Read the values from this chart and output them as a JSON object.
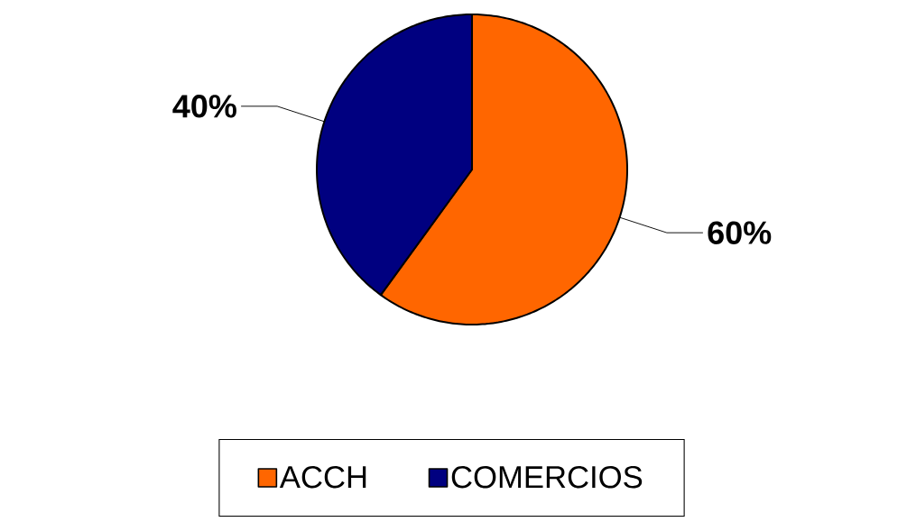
{
  "chart_data": {
    "type": "pie",
    "categories": [
      "ACCH",
      "COMERCIOS"
    ],
    "values": [
      60,
      40
    ],
    "colors": [
      "#ff6600",
      "#000080"
    ],
    "value_labels": [
      "60%",
      "40%"
    ],
    "legend": "bottom"
  }
}
